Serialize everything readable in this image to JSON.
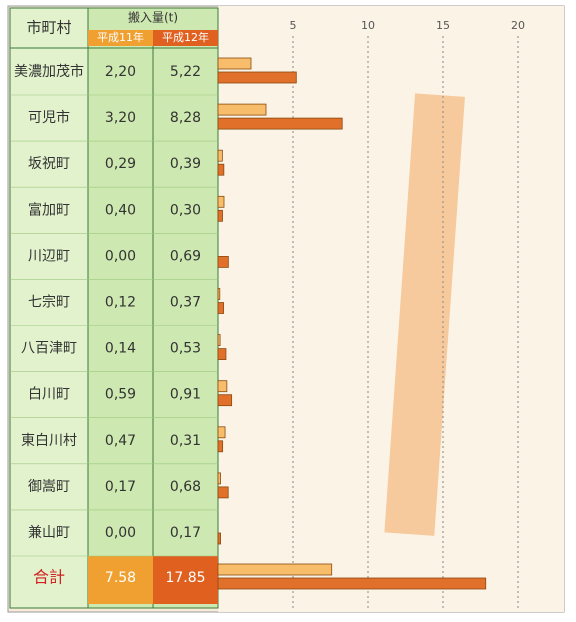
{
  "chart_data": {
    "type": "bar",
    "category_header": "市町村",
    "value_header": "搬入量(t)",
    "categories": [
      "美濃加茂市",
      "可児市",
      "坂祝町",
      "富加町",
      "川辺町",
      "七宗町",
      "八百津町",
      "白川町",
      "東白川村",
      "御嵩町",
      "兼山町",
      "合計"
    ],
    "series": [
      {
        "name": "平成11年",
        "color": "#f7bd6a",
        "values": [
          2.2,
          3.2,
          0.29,
          0.4,
          0,
          0.12,
          0.14,
          0.59,
          0.47,
          0.17,
          0,
          7.58
        ],
        "value_labels": [
          "2,20",
          "3,20",
          "0,29",
          "0,40",
          "0,00",
          "0,12",
          "0,14",
          "0,59",
          "0,47",
          "0,17",
          "0,00",
          "7.58"
        ]
      },
      {
        "name": "平成12年",
        "color": "#e0702a",
        "values": [
          5.22,
          8.28,
          0.39,
          0.3,
          0.69,
          0.37,
          0.53,
          0.91,
          0.31,
          0.68,
          0.17,
          17.85
        ],
        "value_labels": [
          "5,22",
          "8,28",
          "0,39",
          "0,30",
          "0,69",
          "0,37",
          "0,53",
          "0,91",
          "0,31",
          "0,68",
          "0,17",
          "17.85"
        ]
      }
    ],
    "xlim": [
      0,
      22.8
    ],
    "xticks": [
      5,
      10,
      15,
      20
    ],
    "grid": true
  }
}
